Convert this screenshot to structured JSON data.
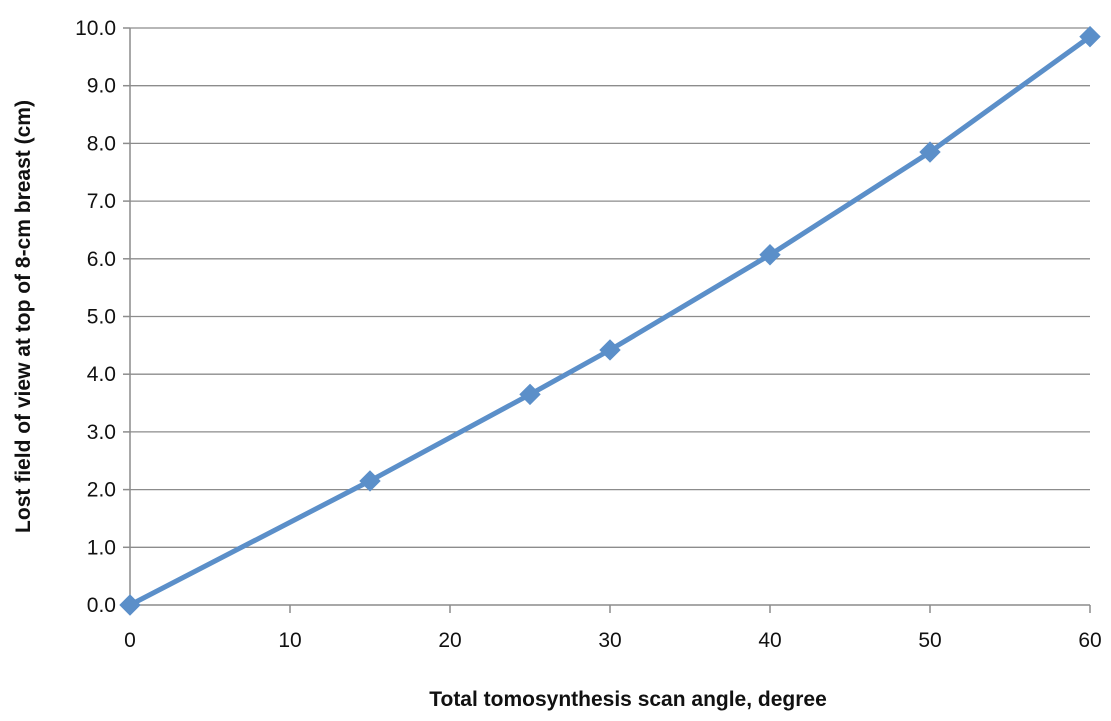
{
  "chart_data": {
    "type": "line",
    "title": "",
    "xlabel": "Total tomosynthesis scan angle, degree",
    "ylabel": "Lost field of view at top of 8-cm breast (cm)",
    "xlim": [
      0,
      60
    ],
    "ylim": [
      0.0,
      10.0
    ],
    "xticks": [
      "0",
      "10",
      "20",
      "30",
      "40",
      "50",
      "60"
    ],
    "yticks": [
      "0.0",
      "1.0",
      "2.0",
      "3.0",
      "4.0",
      "5.0",
      "6.0",
      "7.0",
      "8.0",
      "9.0",
      "10.0"
    ],
    "grid": "horizontal",
    "legend": "none",
    "series": [
      {
        "x": [
          0,
          15,
          25,
          30,
          40,
          50,
          60
        ],
        "y": [
          0.0,
          2.15,
          3.65,
          4.42,
          6.07,
          7.85,
          9.85
        ],
        "marker": "diamond",
        "color": "#5b8fc9"
      }
    ]
  }
}
